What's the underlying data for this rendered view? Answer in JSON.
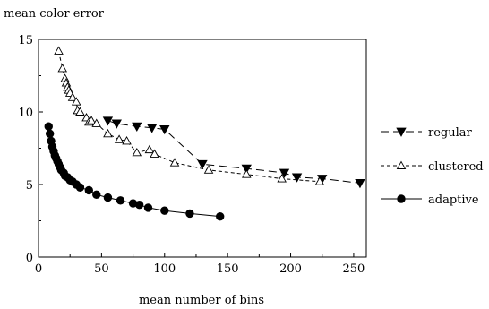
{
  "chart_data": {
    "type": "line",
    "title": "",
    "ylabel": "mean color error",
    "xlabel": "mean number of bins",
    "xlim": [
      0,
      260
    ],
    "ylim": [
      0,
      15
    ],
    "xticks": [
      0,
      50,
      100,
      150,
      200,
      250
    ],
    "yticks": [
      0,
      5,
      10,
      15
    ],
    "grid": false,
    "legend_position": "right",
    "series": [
      {
        "name": "regular",
        "marker": "triangle-down-filled",
        "line_style": "long-dash",
        "x": [
          55,
          62,
          78,
          90,
          100,
          130,
          165,
          195,
          205,
          225,
          255
        ],
        "y": [
          9.4,
          9.2,
          9.0,
          8.9,
          8.8,
          6.4,
          6.1,
          5.8,
          5.5,
          5.4,
          5.1
        ]
      },
      {
        "name": "clustered",
        "marker": "triangle-up-open",
        "line_style": "short-dash",
        "x": [
          16,
          19,
          21,
          22,
          23,
          24,
          25,
          27,
          30,
          31,
          33,
          38,
          40,
          42,
          46,
          55,
          64,
          70,
          78,
          88,
          92,
          108,
          135,
          165,
          193,
          223
        ],
        "y": [
          14.2,
          13.0,
          12.3,
          12.0,
          11.7,
          11.5,
          11.3,
          11.0,
          10.7,
          10.1,
          10.0,
          9.6,
          9.3,
          9.4,
          9.2,
          8.5,
          8.1,
          8.0,
          7.2,
          7.4,
          7.1,
          6.5,
          6.0,
          5.7,
          5.4,
          5.2
        ]
      },
      {
        "name": "adaptive",
        "marker": "circle-filled",
        "line_style": "solid",
        "x": [
          8,
          9,
          10,
          11,
          12,
          13,
          14,
          15,
          16,
          17,
          18,
          20,
          21,
          23,
          25,
          27,
          30,
          33,
          40,
          46,
          55,
          65,
          75,
          80,
          87,
          100,
          120,
          144
        ],
        "y": [
          9.0,
          8.5,
          8.0,
          7.6,
          7.3,
          7.0,
          6.8,
          6.6,
          6.4,
          6.2,
          6.0,
          5.8,
          5.6,
          5.5,
          5.3,
          5.2,
          5.0,
          4.8,
          4.6,
          4.3,
          4.1,
          3.9,
          3.7,
          3.6,
          3.4,
          3.2,
          3.0,
          2.8
        ]
      }
    ]
  }
}
